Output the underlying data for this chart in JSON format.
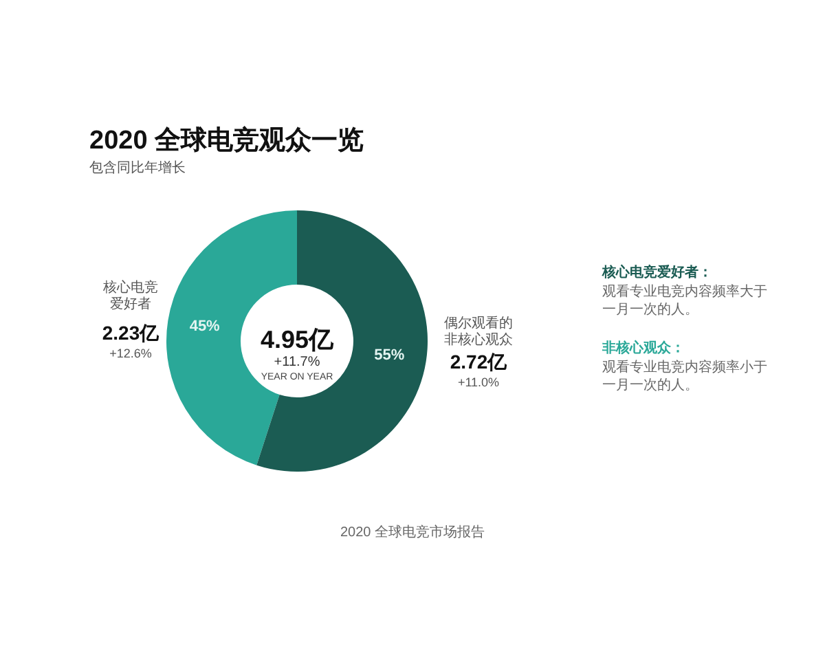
{
  "chart_data": {
    "type": "donut",
    "title": "2020 全球电竞观众一览",
    "subtitle": "包含同比年增长",
    "categories": [
      "核心电竞爱好者",
      "偶尔观看的非核心观众"
    ],
    "values": [
      45,
      55
    ],
    "value_labels": [
      "45%",
      "55%"
    ],
    "colors": [
      "#2aa898",
      "#1b5c53"
    ],
    "annotations": [
      "4.95亿",
      "+11.7%",
      "YEAR ON YEAR",
      "2.23亿",
      "+12.6%",
      "2.72亿",
      "+11.0%",
      "核心电竞爱好者：",
      "观看专业电竞内容频率大于一月一次的人。",
      "非核心观众：",
      "观看专业电竞内容频率小于一月一次的人。",
      "2020 全球电竞市场报告"
    ]
  }
}
